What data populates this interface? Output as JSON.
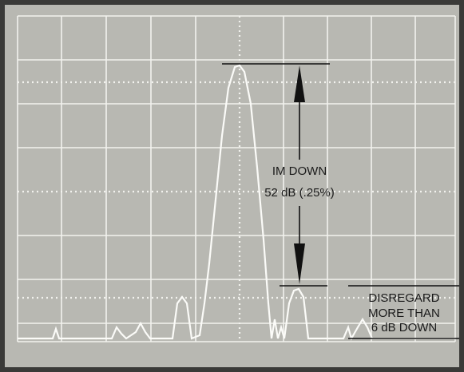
{
  "annotations": {
    "im_down": "IM DOWN",
    "level": "52 dB (.25%)"
  },
  "note": {
    "lines": [
      "DISREGARD",
      "MORE THAN",
      "6 dB DOWN"
    ]
  }
}
